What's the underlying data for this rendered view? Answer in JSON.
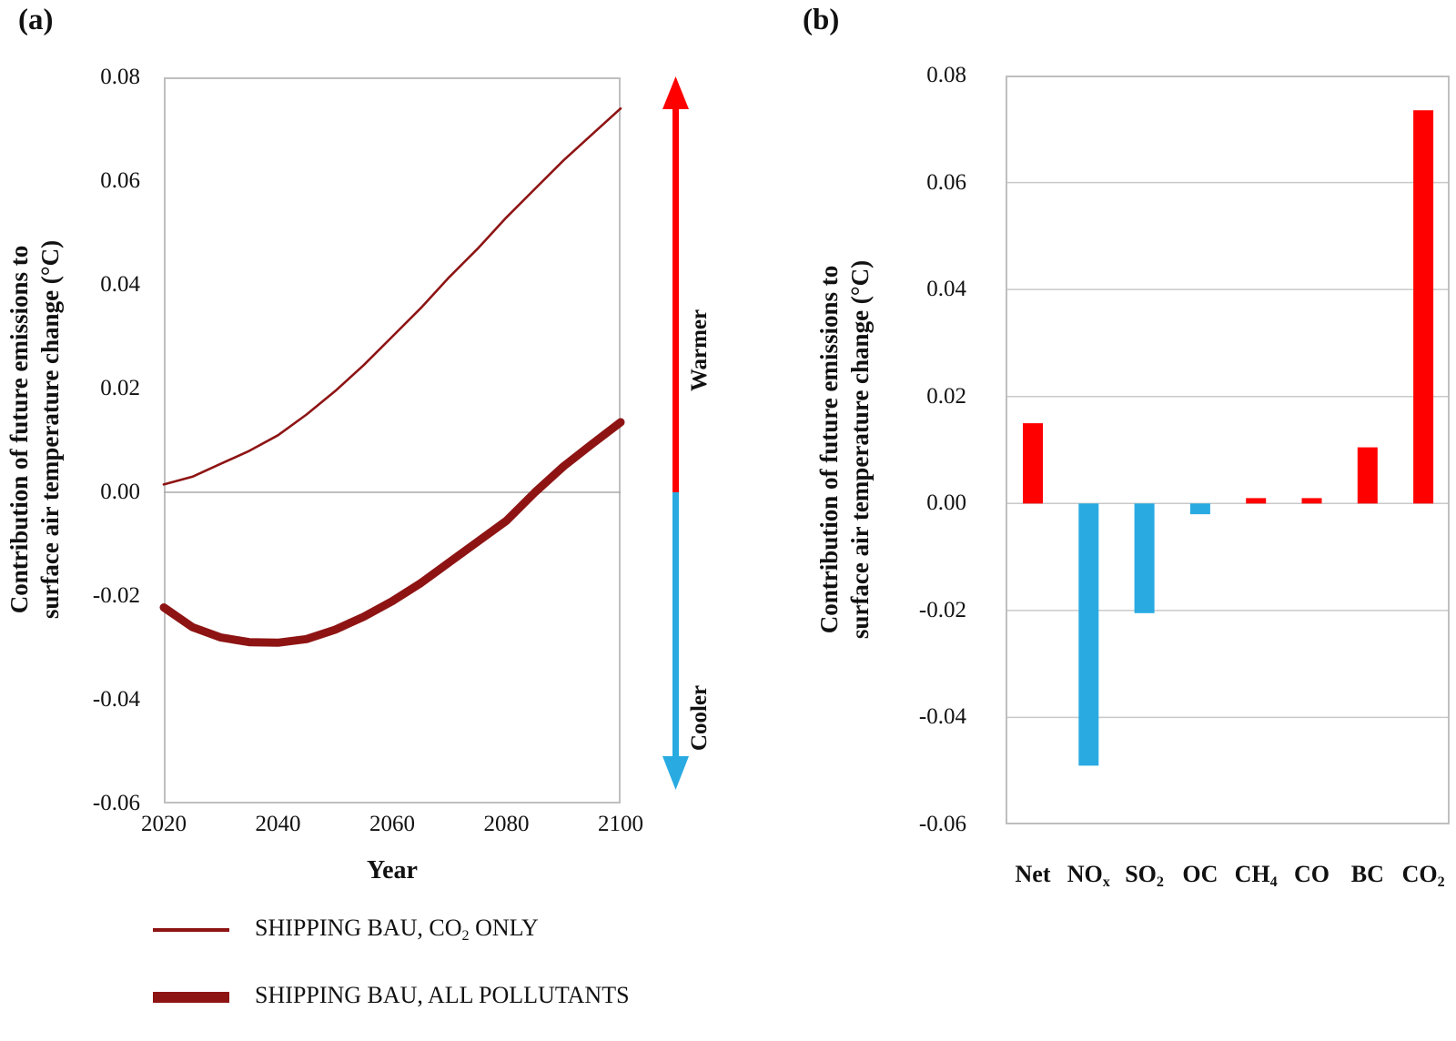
{
  "colors": {
    "dark_red_line": "#8E1414",
    "positive_bar": "#FF0000",
    "negative_bar": "#29ABE2",
    "warmer_arrow": "#FF0000",
    "cooler_arrow": "#29ABE2",
    "plot_border": "#BFBFBF",
    "gridline": "#C9C9C9",
    "zero_line": "#A9A9A9"
  },
  "panels": {
    "a": {
      "label": "(a)",
      "y_title_line1": "Contribution of future emissions to",
      "y_title_line2": "surface air temperature change (°C)",
      "x_title": "Year",
      "y_ticks": [
        "0.08",
        "0.06",
        "0.04",
        "0.02",
        "0.00",
        "-0.02",
        "-0.04",
        "-0.06"
      ],
      "x_ticks": [
        "2020",
        "2040",
        "2060",
        "2080",
        "2100"
      ],
      "warmer": "Warmer",
      "cooler": "Cooler"
    },
    "b": {
      "label": "(b)",
      "y_title_line1": "Contribution of future emissions to",
      "y_title_line2": "surface air temperature change (°C)",
      "y_ticks": [
        "0.08",
        "0.06",
        "0.04",
        "0.02",
        "0.00",
        "-0.02",
        "-0.04",
        "-0.06"
      ],
      "categories": [
        {
          "base": "Net",
          "sub": ""
        },
        {
          "base": "NO",
          "sub": "x"
        },
        {
          "base": "SO",
          "sub": "2"
        },
        {
          "base": "OC",
          "sub": ""
        },
        {
          "base": "CH",
          "sub": "4"
        },
        {
          "base": "CO",
          "sub": ""
        },
        {
          "base": "BC",
          "sub": ""
        },
        {
          "base": "CO",
          "sub": "2"
        }
      ]
    }
  },
  "legend": {
    "items": [
      {
        "pre": "SHIPPING BAU, CO",
        "sub": "2",
        "post": " ONLY",
        "style": "thin"
      },
      {
        "pre": "SHIPPING BAU, ALL POLLUTANTS",
        "sub": "",
        "post": "",
        "style": "thick"
      }
    ]
  },
  "chart_data": [
    {
      "type": "line",
      "panel": "a",
      "title": "(a)",
      "xlabel": "Year",
      "ylabel": "Contribution of future emissions to surface air temperature change (°C)",
      "xlim": [
        2020,
        2100
      ],
      "ylim": [
        -0.06,
        0.08
      ],
      "grid": "zero-line-only",
      "legend_position": "below-figure",
      "annotations": [
        "Warmer (red up arrow)",
        "Cooler (blue down arrow)"
      ],
      "x": [
        2020,
        2025,
        2030,
        2035,
        2040,
        2045,
        2050,
        2055,
        2060,
        2065,
        2070,
        2075,
        2080,
        2085,
        2090,
        2095,
        2100
      ],
      "series": [
        {
          "name": "SHIPPING BAU, CO2 ONLY",
          "color": "#8E1414",
          "line_width": "thin",
          "values": [
            0.0015,
            0.003,
            0.0055,
            0.008,
            0.011,
            0.015,
            0.0195,
            0.0245,
            0.03,
            0.0355,
            0.0415,
            0.047,
            0.053,
            0.0585,
            0.064,
            0.069,
            0.074
          ]
        },
        {
          "name": "SHIPPING BAU, ALL POLLUTANTS",
          "color": "#8E1414",
          "line_width": "thick",
          "values": [
            -0.0222,
            -0.026,
            -0.028,
            -0.0289,
            -0.029,
            -0.0283,
            -0.0265,
            -0.024,
            -0.021,
            -0.0175,
            -0.0135,
            -0.0095,
            -0.0055,
            0.0,
            0.005,
            0.0093,
            0.0135
          ]
        }
      ]
    },
    {
      "type": "bar",
      "panel": "b",
      "title": "(b)",
      "ylabel": "Contribution of future emissions to surface air temperature change (°C)",
      "ylim": [
        -0.06,
        0.08
      ],
      "grid": "on",
      "gridline_step": 0.02,
      "categories": [
        "Net",
        "NOx",
        "SO2",
        "OC",
        "CH4",
        "CO",
        "BC",
        "CO2"
      ],
      "values": [
        0.015,
        -0.049,
        -0.0205,
        -0.002,
        0.001,
        0.001,
        0.0105,
        0.0735
      ],
      "bar_colors": [
        "#FF0000",
        "#29ABE2",
        "#29ABE2",
        "#29ABE2",
        "#FF0000",
        "#FF0000",
        "#FF0000",
        "#FF0000"
      ]
    }
  ]
}
